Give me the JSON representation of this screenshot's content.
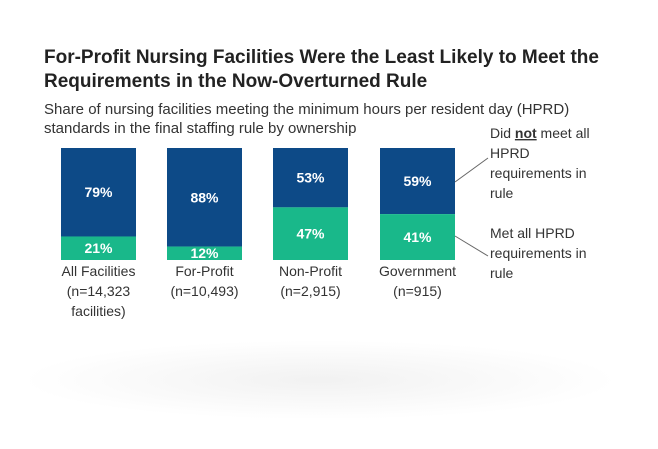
{
  "title": "For-Profit Nursing Facilities Were the Least Likely to Meet the Requirements in the Now-Overturned Rule",
  "subtitle": "Share of nursing facilities meeting the minimum hours per resident day (HPRD) standards in the final staffing rule by ownership",
  "colors": {
    "did_not_meet": "#0d4a87",
    "met": "#19b88a"
  },
  "legend": {
    "did_not_meet": {
      "line1_pre": "Did ",
      "line1_bold": "not",
      "line1_post": " meet all",
      "line2": "HPRD",
      "line3": "requirements in",
      "line4": "rule"
    },
    "met": {
      "line1": "Met all HPRD",
      "line2": "requirements in",
      "line3": "rule"
    }
  },
  "chart_data": {
    "type": "bar",
    "stacked": true,
    "categories": [
      "All Facilities",
      "For-Profit",
      "Non-Profit",
      "Government"
    ],
    "category_n": [
      "(n=14,323",
      "(n=10,493)",
      "(n=2,915)",
      "(n=915)"
    ],
    "category_n_extra": [
      "facilities)",
      "",
      "",
      ""
    ],
    "series": [
      {
        "name": "Met all HPRD requirements in rule",
        "values": [
          21,
          12,
          47,
          41
        ],
        "labels": [
          "21%",
          "12%",
          "47%",
          "41%"
        ]
      },
      {
        "name": "Did not meet all HPRD requirements in rule",
        "values": [
          79,
          88,
          53,
          59
        ],
        "labels": [
          "79%",
          "88%",
          "53%",
          "59%"
        ]
      }
    ],
    "ylim": [
      0,
      100
    ],
    "grid": false,
    "legend_position": "right"
  }
}
